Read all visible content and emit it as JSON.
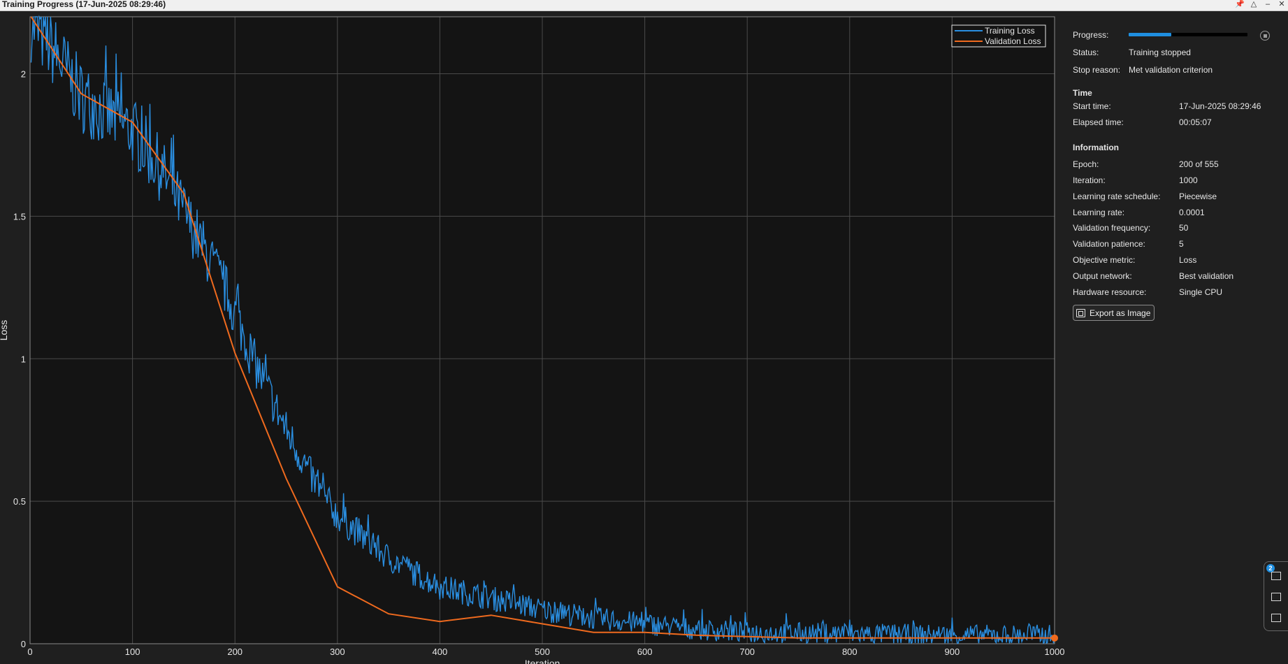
{
  "window": {
    "title": "Training Progress (17-Jun-2025 08:29:46)",
    "controls": [
      "pin-icon",
      "collapse-icon",
      "minimize-icon",
      "close-icon"
    ]
  },
  "colors": {
    "background": "#1f1f1f",
    "axes_background": "#141414",
    "training": "#2a8ee0",
    "validation": "#ef6a1e",
    "grid": "#4a4a4a"
  },
  "side_panel": {
    "progress_label": "Progress:",
    "progress_value": 0.36,
    "status_label": "Status:",
    "status_value": "Training stopped",
    "stop_reason_label": "Stop reason:",
    "stop_reason_value": "Met validation criterion",
    "time_heading": "Time",
    "time": [
      {
        "label": "Start time:",
        "value": "17-Jun-2025 08:29:46"
      },
      {
        "label": "Elapsed time:",
        "value": "00:05:07"
      }
    ],
    "info_heading": "Information",
    "info": [
      {
        "label": "Epoch:",
        "value": "200 of 555"
      },
      {
        "label": "Iteration:",
        "value": "1000"
      },
      {
        "label": "Learning rate schedule:",
        "value": "Piecewise"
      },
      {
        "label": "Learning rate:",
        "value": "0.0001"
      },
      {
        "label": "Validation frequency:",
        "value": "50"
      },
      {
        "label": "Validation patience:",
        "value": "5"
      },
      {
        "label": "Objective metric:",
        "value": "Loss"
      },
      {
        "label": "Output network:",
        "value": "Best validation"
      },
      {
        "label": "Hardware resource:",
        "value": "Single CPU"
      }
    ],
    "export_button": "Export as Image"
  },
  "dock": {
    "badge": "2"
  },
  "chart_data": {
    "type": "line",
    "xlabel": "Iteration",
    "ylabel": "Loss",
    "xlim": [
      0,
      1000
    ],
    "ylim": [
      0,
      2.2
    ],
    "xticks": [
      0,
      100,
      200,
      300,
      400,
      500,
      600,
      700,
      800,
      900,
      1000
    ],
    "yticks": [
      0,
      0.5,
      1,
      1.5,
      2
    ],
    "grid": true,
    "legend_position": "top-right",
    "series": [
      {
        "name": "Training Loss",
        "color": "#2a8ee0",
        "points": [
          [
            1,
            2.18
          ],
          [
            20,
            2.1
          ],
          [
            50,
            1.92
          ],
          [
            100,
            1.8
          ],
          [
            130,
            1.65
          ],
          [
            160,
            1.45
          ],
          [
            190,
            1.25
          ],
          [
            220,
            0.98
          ],
          [
            250,
            0.75
          ],
          [
            280,
            0.55
          ],
          [
            300,
            0.45
          ],
          [
            350,
            0.3
          ],
          [
            400,
            0.2
          ],
          [
            450,
            0.16
          ],
          [
            500,
            0.12
          ],
          [
            550,
            0.09
          ],
          [
            600,
            0.07
          ],
          [
            650,
            0.05
          ],
          [
            700,
            0.04
          ],
          [
            800,
            0.035
          ],
          [
            900,
            0.03
          ],
          [
            1000,
            0.03
          ]
        ],
        "noise": 0.08
      },
      {
        "name": "Validation Loss",
        "color": "#ef6a1e",
        "x": [
          1,
          50,
          100,
          150,
          200,
          250,
          300,
          350,
          400,
          450,
          500,
          550,
          600,
          650,
          700,
          750,
          800,
          850,
          900,
          950,
          1000
        ],
        "values": [
          2.2,
          1.93,
          1.83,
          1.58,
          1.02,
          0.58,
          0.2,
          0.105,
          0.078,
          0.1,
          0.07,
          0.04,
          0.04,
          0.03,
          0.025,
          0.02,
          0.02,
          0.02,
          0.02,
          0.02,
          0.02
        ]
      }
    ]
  }
}
